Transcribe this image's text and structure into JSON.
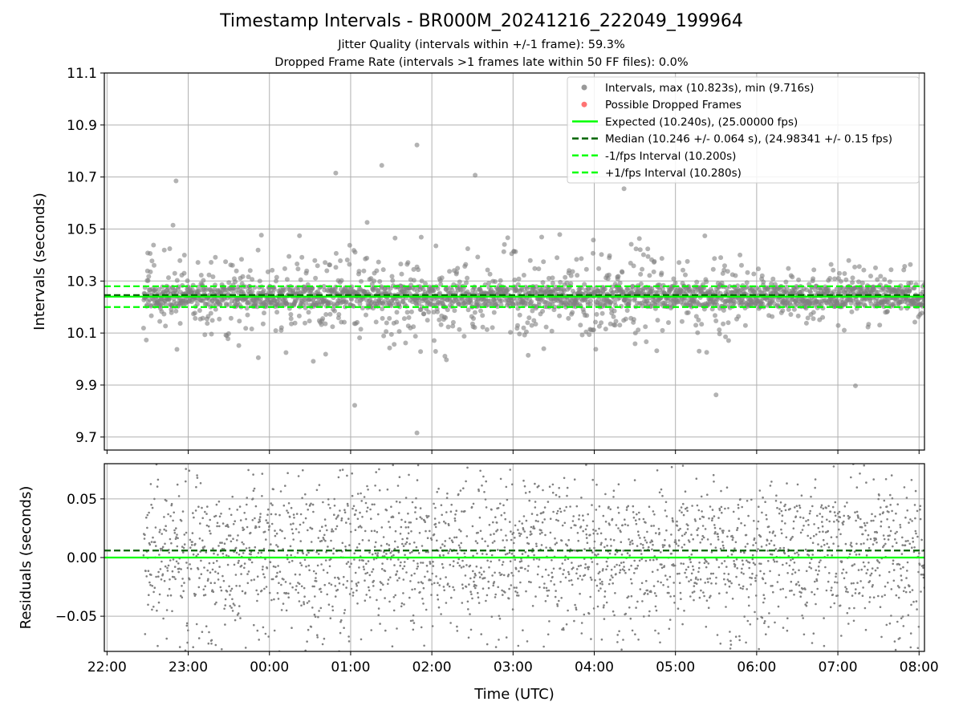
{
  "figure": {
    "title": "Timestamp Intervals - BR000M_20241216_222049_199964",
    "subtitle_1": "Jitter Quality (intervals within +/-1 frame): 59.3%",
    "subtitle_2": "Dropped Frame Rate (intervals >1 frames late within 50 FF files): 0.0%"
  },
  "colors": {
    "points": "#808080",
    "dropped": "#ff5050",
    "expected": "#00ff00",
    "median": "#006400",
    "grid": "#b0b0b0"
  },
  "chart_data": [
    {
      "type": "scatter",
      "xlabel": "",
      "ylabel": "Intervals (seconds)",
      "ylim": [
        9.65,
        11.1
      ],
      "yticks": [
        9.7,
        9.9,
        10.1,
        10.3,
        10.5,
        10.7,
        10.9,
        11.1
      ],
      "ytick_labels": [
        "9.7",
        "9.9",
        "10.1",
        "10.3",
        "10.5",
        "10.7",
        "10.9",
        "11.1"
      ],
      "xlim": [
        "2024-12-16T21:58",
        "2024-12-17T08:04"
      ],
      "xticks": [
        "2024-12-16T22:00",
        "2024-12-16T23:00",
        "2024-12-17T00:00",
        "2024-12-17T01:00",
        "2024-12-17T02:00",
        "2024-12-17T03:00",
        "2024-12-17T04:00",
        "2024-12-17T05:00",
        "2024-12-17T06:00",
        "2024-12-17T07:00",
        "2024-12-17T08:00"
      ],
      "grid": true,
      "legend_position": "upper right",
      "legend": [
        {
          "label": "Intervals, max (10.823s), min (9.716s)",
          "kind": "marker",
          "color": "#808080"
        },
        {
          "label": "Possible Dropped Frames",
          "kind": "marker",
          "color": "#ff5050"
        },
        {
          "label": "Expected (10.240s), (25.00000 fps)",
          "kind": "solid",
          "color": "#00ff00"
        },
        {
          "label": "Median (10.246 +/- 0.064 s), (24.98341 +/- 0.15 fps)",
          "kind": "dashed",
          "color": "#006400"
        },
        {
          "label": "-1/fps Interval (10.200s)",
          "kind": "dashed",
          "color": "#00ff00"
        },
        {
          "label": "+1/fps Interval (10.280s)",
          "kind": "dashed",
          "color": "#00ff00"
        }
      ],
      "reference_lines": [
        {
          "name": "Expected (10.240s), (25.00000 fps)",
          "y": 10.24,
          "style": "solid",
          "color": "#00ff00"
        },
        {
          "name": "Median (10.246 +/- 0.064 s), (24.98341 +/- 0.15 fps)",
          "y": 10.246,
          "style": "dashed",
          "color": "#006400"
        },
        {
          "name": "-1/fps Interval (10.200s)",
          "y": 10.2,
          "style": "dashed",
          "color": "#00ff00"
        },
        {
          "name": "+1/fps Interval (10.280s)",
          "y": 10.28,
          "style": "dashed",
          "color": "#00ff00"
        }
      ],
      "series": [
        {
          "name": "Intervals, max (10.823s), min (9.716s)",
          "color": "#808080",
          "x_start": "2024-12-16T22:27",
          "x_end": "2024-12-17T08:04",
          "core_range": [
            10.2,
            10.28
          ],
          "max": 10.823,
          "min": 9.716,
          "notable_points": [
            {
              "x": "2024-12-17T01:49",
              "y": 10.823
            },
            {
              "x": "2024-12-17T01:49",
              "y": 9.716
            },
            {
              "x": "2024-12-17T00:49",
              "y": 10.715
            },
            {
              "x": "2024-12-16T22:51",
              "y": 10.685
            },
            {
              "x": "2024-12-17T02:32",
              "y": 10.707
            },
            {
              "x": "2024-12-17T01:23",
              "y": 10.745
            },
            {
              "x": "2024-12-17T04:22",
              "y": 10.655
            },
            {
              "x": "2024-12-17T07:13",
              "y": 9.897
            },
            {
              "x": "2024-12-17T01:03",
              "y": 9.822
            },
            {
              "x": "2024-12-17T05:30",
              "y": 9.862
            }
          ]
        },
        {
          "name": "Possible Dropped Frames",
          "color": "#ff5050",
          "values": []
        }
      ]
    },
    {
      "type": "scatter",
      "xlabel": "Time (UTC)",
      "ylabel": "Residuals (seconds)",
      "ylim": [
        -0.08,
        0.08
      ],
      "yticks": [
        -0.05,
        0.0,
        0.05
      ],
      "ytick_labels": [
        "−0.05",
        "0.00",
        "0.05"
      ],
      "xlim": [
        "2024-12-16T21:58",
        "2024-12-17T08:04"
      ],
      "xticks": [
        "2024-12-16T22:00",
        "2024-12-16T23:00",
        "2024-12-17T00:00",
        "2024-12-17T01:00",
        "2024-12-17T02:00",
        "2024-12-17T03:00",
        "2024-12-17T04:00",
        "2024-12-17T05:00",
        "2024-12-17T06:00",
        "2024-12-17T07:00",
        "2024-12-17T08:00"
      ],
      "xtick_labels": [
        "22:00",
        "23:00",
        "00:00",
        "01:00",
        "02:00",
        "03:00",
        "04:00",
        "05:00",
        "06:00",
        "07:00",
        "08:00"
      ],
      "grid": true,
      "reference_lines": [
        {
          "y": 0.0,
          "style": "solid",
          "color": "#00ff00"
        },
        {
          "y": 0.006,
          "style": "dashed",
          "color": "#006400"
        }
      ],
      "series": [
        {
          "color": "#808080",
          "x_start": "2024-12-16T22:27",
          "x_end": "2024-12-17T08:04",
          "range": [
            -0.08,
            0.08
          ]
        }
      ]
    }
  ]
}
